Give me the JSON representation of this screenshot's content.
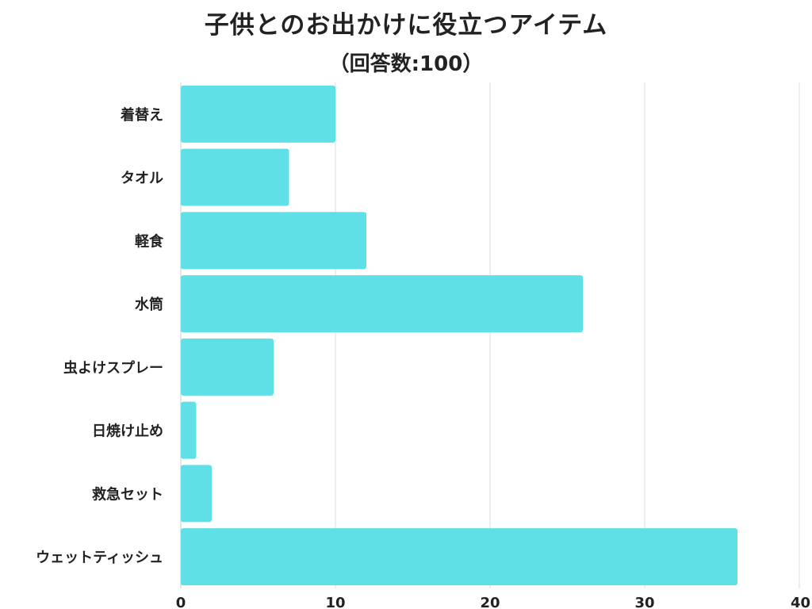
{
  "chart_data": {
    "type": "bar",
    "orientation": "horizontal",
    "title": "子供とのお出かけに役立つアイテム",
    "subtitle": "（回答数:100）",
    "categories": [
      "着替え",
      "タオル",
      "軽食",
      "水筒",
      "虫よけスプレー",
      "日焼け止め",
      "救急セット",
      "ウェットティッシュ"
    ],
    "values": [
      10,
      7,
      12,
      26,
      6,
      1,
      2,
      36
    ],
    "xlim": [
      0,
      40
    ],
    "xticks": [
      0,
      10,
      20,
      30,
      40
    ],
    "grid": true,
    "bar_color": "#5ee0e6",
    "grid_color": "#dddddd"
  }
}
